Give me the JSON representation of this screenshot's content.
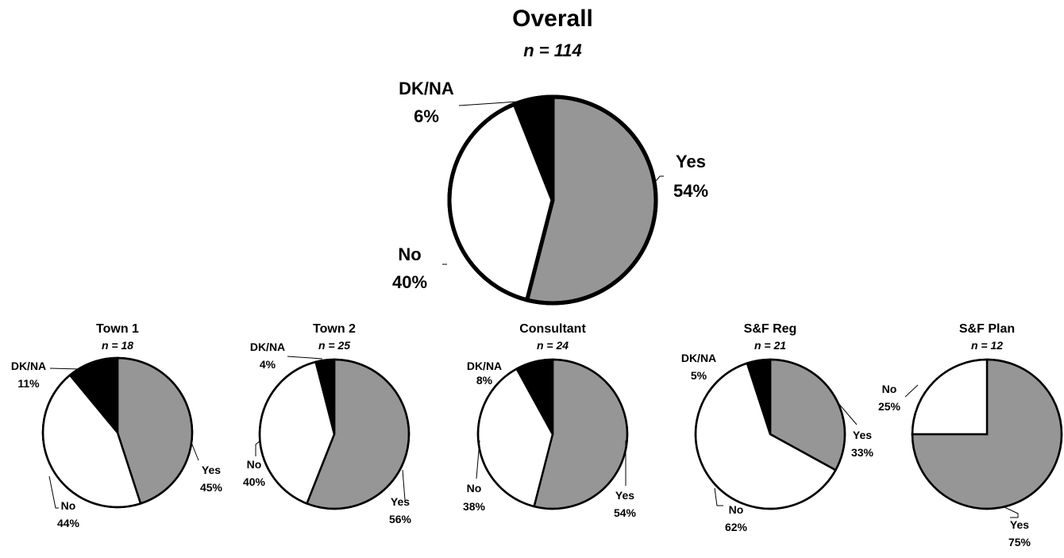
{
  "colors": {
    "Yes": "#969696",
    "No": "#ffffff",
    "DK/NA": "#000000",
    "outline": "#000000"
  },
  "chart_data": [
    {
      "type": "pie",
      "title": "Overall",
      "subtitle": "n = 114",
      "slices": [
        {
          "label": "Yes",
          "value": 54,
          "text": "54%"
        },
        {
          "label": "No",
          "value": 40,
          "text": "40%"
        },
        {
          "label": "DK/NA",
          "value": 6,
          "text": "6%"
        }
      ]
    },
    {
      "type": "pie",
      "title": "Town 1",
      "subtitle": "n = 18",
      "slices": [
        {
          "label": "Yes",
          "value": 45,
          "text": "45%"
        },
        {
          "label": "No",
          "value": 44,
          "text": "44%"
        },
        {
          "label": "DK/NA",
          "value": 11,
          "text": "11%"
        }
      ]
    },
    {
      "type": "pie",
      "title": "Town 2",
      "subtitle": "n = 25",
      "slices": [
        {
          "label": "Yes",
          "value": 56,
          "text": "56%"
        },
        {
          "label": "No",
          "value": 40,
          "text": "40%"
        },
        {
          "label": "DK/NA",
          "value": 4,
          "text": "4%"
        }
      ]
    },
    {
      "type": "pie",
      "title": "Consultant",
      "subtitle": "n = 24",
      "slices": [
        {
          "label": "Yes",
          "value": 54,
          "text": "54%"
        },
        {
          "label": "No",
          "value": 38,
          "text": "38%"
        },
        {
          "label": "DK/NA",
          "value": 8,
          "text": "8%"
        }
      ]
    },
    {
      "type": "pie",
      "title": "S&F Reg",
      "subtitle": "n = 21",
      "slices": [
        {
          "label": "Yes",
          "value": 33,
          "text": "33%"
        },
        {
          "label": "No",
          "value": 62,
          "text": "62%"
        },
        {
          "label": "DK/NA",
          "value": 5,
          "text": "5%"
        }
      ]
    },
    {
      "type": "pie",
      "title": "S&F Plan",
      "subtitle": "n = 12",
      "slices": [
        {
          "label": "Yes",
          "value": 75,
          "text": "75%"
        },
        {
          "label": "No",
          "value": 25,
          "text": "25%"
        }
      ]
    }
  ]
}
